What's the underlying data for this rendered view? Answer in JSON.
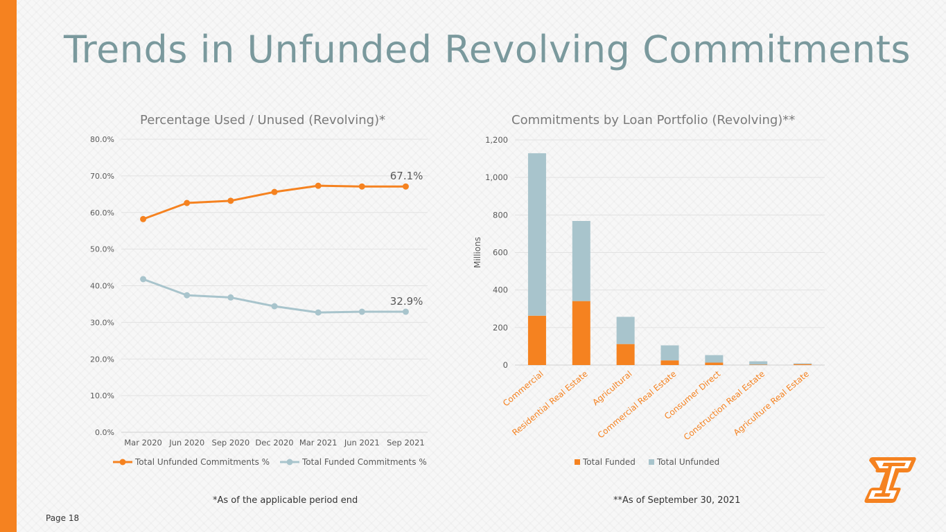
{
  "slide": {
    "title": "Trends in Unfunded Revolving Commitments",
    "page_label": "Page 18",
    "footnote_left": "*As of the applicable period end",
    "footnote_right": "**As of September 30, 2021",
    "colors": {
      "orange": "#f58220",
      "blue_gray": "#a8c4cc",
      "title": "#7a999d"
    }
  },
  "chart_data": [
    {
      "type": "line",
      "title": "Percentage Used / Unused (Revolving)*",
      "categories": [
        "Mar 2020",
        "Jun 2020",
        "Sep 2020",
        "Dec 2020",
        "Mar 2021",
        "Jun 2021",
        "Sep 2021"
      ],
      "series": [
        {
          "name": "Total Unfunded Commitments %",
          "values": [
            58.2,
            62.6,
            63.2,
            65.6,
            67.3,
            67.1,
            67.1
          ],
          "color": "#f58220"
        },
        {
          "name": "Total Funded Commitments %",
          "values": [
            41.8,
            37.4,
            36.8,
            34.4,
            32.7,
            32.9,
            32.9
          ],
          "color": "#a8c4cc"
        }
      ],
      "y_ticks": [
        "0.0%",
        "10.0%",
        "20.0%",
        "30.0%",
        "40.0%",
        "50.0%",
        "60.0%",
        "70.0%",
        "80.0%"
      ],
      "ylim": [
        0,
        80
      ],
      "annotations": [
        "67.1%",
        "32.9%"
      ],
      "legend": "bottom"
    },
    {
      "type": "bar",
      "stacked": true,
      "title": "Commitments by Loan Portfolio  (Revolving)**",
      "ylabel": "Millions",
      "categories": [
        "Commercial",
        "Residential Real Estate",
        "Agricultural",
        "Commercial Real Estate",
        "Consumer Direct",
        "Construction Real Estate",
        "Agriculture Real Estate"
      ],
      "series": [
        {
          "name": "Total Funded",
          "values": [
            263,
            341,
            112,
            25,
            13,
            2,
            5
          ],
          "color": "#f58220"
        },
        {
          "name": "Total Unfunded",
          "values": [
            866,
            427,
            145,
            80,
            40,
            18,
            4
          ],
          "color": "#a8c4cc"
        }
      ],
      "y_ticks": [
        "0",
        "200",
        "400",
        "600",
        "800",
        "1,000",
        "1,200"
      ],
      "ylim": [
        0,
        1200
      ],
      "legend": "bottom"
    }
  ]
}
